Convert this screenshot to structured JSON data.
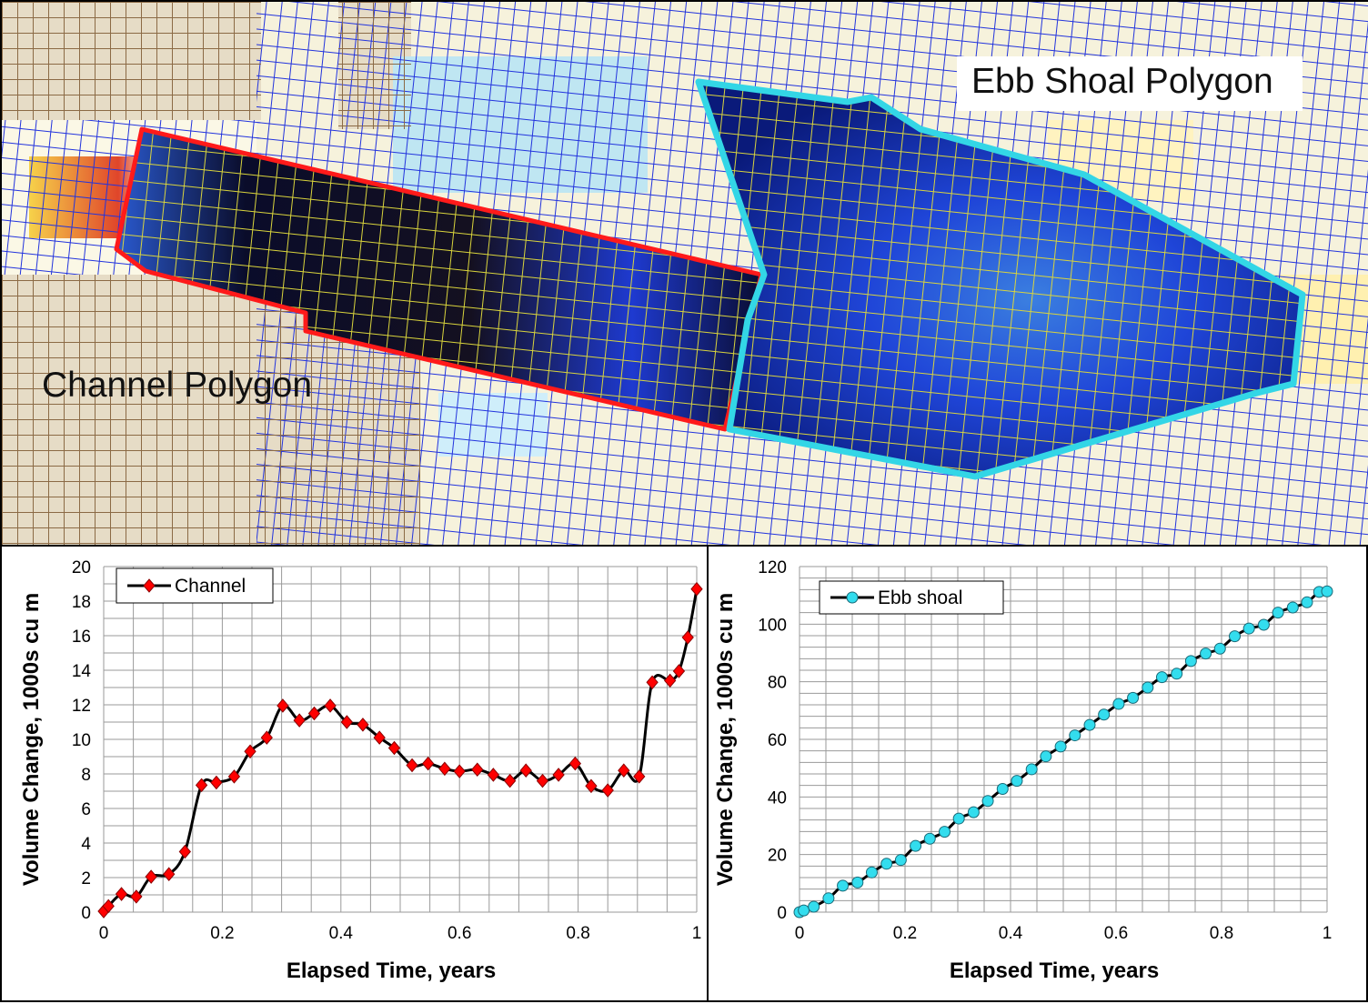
{
  "map": {
    "ebb_label": "Ebb Shoal Polygon",
    "channel_label": "Channel Polygon",
    "colors": {
      "channel_outline": "#ff1a1a",
      "ebb_outline": "#33d6e6",
      "grid_blue": "#1a2ee0",
      "grid_brown": "#8b6a45",
      "grid_yellow": "#d8d23a"
    }
  },
  "chart_data": [
    {
      "type": "line",
      "xlabel": "Elapsed Time, years",
      "ylabel": "Volume Change, 1000s cu m",
      "xlim": [
        0,
        1
      ],
      "ylim": [
        0,
        20
      ],
      "xticks": [
        "0",
        "0.2",
        "0.4",
        "0.6",
        "0.8",
        "1"
      ],
      "yticks": [
        "0",
        "2",
        "4",
        "6",
        "8",
        "10",
        "12",
        "14",
        "16",
        "18",
        "20"
      ],
      "grid": true,
      "legend_position": "top-left",
      "series": [
        {
          "name": "Channel",
          "color": "#ff0000",
          "marker": "diamond",
          "x": [
            0,
            0.008,
            0.03,
            0.055,
            0.08,
            0.11,
            0.137,
            0.165,
            0.19,
            0.22,
            0.247,
            0.275,
            0.302,
            0.33,
            0.355,
            0.382,
            0.41,
            0.437,
            0.465,
            0.49,
            0.52,
            0.547,
            0.575,
            0.6,
            0.63,
            0.657,
            0.685,
            0.712,
            0.74,
            0.767,
            0.795,
            0.822,
            0.85,
            0.877,
            0.903,
            0.925,
            0.955,
            0.97,
            0.985,
            1.0
          ],
          "y": [
            0.05,
            0.35,
            1.05,
            0.9,
            2.05,
            2.2,
            3.5,
            7.35,
            7.5,
            7.85,
            9.3,
            10.1,
            11.95,
            11.1,
            11.5,
            11.95,
            11.0,
            10.85,
            10.1,
            9.5,
            8.5,
            8.6,
            8.3,
            8.15,
            8.25,
            7.95,
            7.6,
            8.2,
            7.6,
            7.95,
            8.6,
            7.3,
            7.05,
            8.2,
            7.85,
            13.3,
            13.4,
            13.95,
            15.9,
            18.7
          ]
        }
      ]
    },
    {
      "type": "line",
      "xlabel": "Elapsed Time, years",
      "ylabel": "Volume Change, 1000s cu m",
      "xlim": [
        0,
        1
      ],
      "ylim": [
        0,
        120
      ],
      "xticks": [
        "0",
        "0.2",
        "0.4",
        "0.6",
        "0.8",
        "1"
      ],
      "yticks": [
        "0",
        "20",
        "40",
        "60",
        "80",
        "100",
        "120"
      ],
      "grid": true,
      "legend_position": "top-left",
      "series": [
        {
          "name": "Ebb shoal",
          "color": "#33ddee",
          "marker": "circle",
          "x": [
            0,
            0.008,
            0.027,
            0.055,
            0.082,
            0.11,
            0.137,
            0.165,
            0.192,
            0.22,
            0.247,
            0.275,
            0.302,
            0.33,
            0.357,
            0.385,
            0.412,
            0.44,
            0.467,
            0.495,
            0.522,
            0.55,
            0.577,
            0.605,
            0.632,
            0.66,
            0.687,
            0.715,
            0.742,
            0.77,
            0.797,
            0.825,
            0.852,
            0.88,
            0.907,
            0.935,
            0.962,
            0.985,
            1.0
          ],
          "y": [
            0,
            0.6,
            1.9,
            4.8,
            9.2,
            10.3,
            13.8,
            16.8,
            18.1,
            23.0,
            25.5,
            27.9,
            32.5,
            34.7,
            38.6,
            42.8,
            45.6,
            49.6,
            54.1,
            57.5,
            61.4,
            65.0,
            68.6,
            72.3,
            74.4,
            78.0,
            81.6,
            82.8,
            87.2,
            89.8,
            91.5,
            95.8,
            98.5,
            99.8,
            104.0,
            105.8,
            107.6,
            111.2,
            111.4
          ]
        }
      ]
    }
  ]
}
